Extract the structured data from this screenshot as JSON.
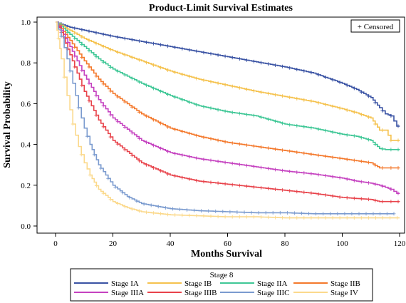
{
  "chart_data": {
    "type": "line",
    "title": "Product-Limit Survival Estimates",
    "xlabel": "Months Survival",
    "ylabel": "Survival Probability",
    "xlim": [
      0,
      120
    ],
    "ylim": [
      0,
      1.0
    ],
    "x_ticks": [
      "0",
      "20",
      "40",
      "60",
      "80",
      "100",
      "120"
    ],
    "y_ticks": [
      "0.0",
      "0.2",
      "0.4",
      "0.6",
      "0.8",
      "1.0"
    ],
    "x_tick_values": [
      0,
      20,
      40,
      60,
      80,
      100,
      120
    ],
    "y_tick_values": [
      0,
      0.2,
      0.4,
      0.6,
      0.8,
      1.0
    ],
    "censored_label": "+ Censored",
    "legend_title": "Stage 8",
    "legend_position": "bottom",
    "grid": false,
    "series": [
      {
        "name": "Stage IA",
        "color": "#3a53a4",
        "x": [
          0,
          2,
          5,
          10,
          15,
          20,
          30,
          40,
          50,
          60,
          70,
          80,
          90,
          100,
          105,
          110,
          113,
          115,
          117,
          119,
          120
        ],
        "y": [
          1.0,
          0.99,
          0.975,
          0.96,
          0.945,
          0.93,
          0.905,
          0.88,
          0.855,
          0.83,
          0.805,
          0.78,
          0.75,
          0.7,
          0.67,
          0.63,
          0.58,
          0.55,
          0.54,
          0.49,
          0.49
        ]
      },
      {
        "name": "Stage IB",
        "color": "#f5c24e",
        "x": [
          0,
          2,
          5,
          10,
          15,
          20,
          30,
          40,
          50,
          60,
          70,
          80,
          90,
          100,
          105,
          110,
          113,
          115,
          117,
          119,
          120
        ],
        "y": [
          1.0,
          0.985,
          0.96,
          0.92,
          0.89,
          0.86,
          0.81,
          0.76,
          0.72,
          0.69,
          0.66,
          0.635,
          0.61,
          0.575,
          0.555,
          0.53,
          0.47,
          0.47,
          0.42,
          0.42,
          0.42
        ]
      },
      {
        "name": "Stage IIA",
        "color": "#3fc796",
        "x": [
          0,
          2,
          5,
          10,
          15,
          20,
          30,
          40,
          50,
          60,
          70,
          80,
          90,
          100,
          105,
          110,
          113,
          115,
          117,
          119,
          120
        ],
        "y": [
          1.0,
          0.98,
          0.94,
          0.88,
          0.82,
          0.77,
          0.7,
          0.64,
          0.59,
          0.56,
          0.54,
          0.5,
          0.48,
          0.45,
          0.44,
          0.42,
          0.38,
          0.375,
          0.375,
          0.375,
          0.375
        ]
      },
      {
        "name": "Stage IIB",
        "color": "#f4792c",
        "x": [
          0,
          2,
          5,
          10,
          15,
          20,
          30,
          40,
          50,
          60,
          70,
          80,
          90,
          100,
          105,
          110,
          113,
          115,
          117,
          119,
          120
        ],
        "y": [
          1.0,
          0.97,
          0.91,
          0.81,
          0.72,
          0.65,
          0.55,
          0.48,
          0.44,
          0.41,
          0.39,
          0.37,
          0.35,
          0.33,
          0.32,
          0.31,
          0.285,
          0.285,
          0.285,
          0.285,
          0.285
        ]
      },
      {
        "name": "Stage IIIA",
        "color": "#c542c0",
        "x": [
          0,
          2,
          5,
          10,
          15,
          20,
          30,
          40,
          50,
          60,
          70,
          80,
          90,
          100,
          105,
          110,
          113,
          115,
          117,
          119,
          120
        ],
        "y": [
          1.0,
          0.96,
          0.88,
          0.74,
          0.62,
          0.53,
          0.42,
          0.36,
          0.33,
          0.31,
          0.29,
          0.27,
          0.255,
          0.235,
          0.22,
          0.21,
          0.2,
          0.19,
          0.18,
          0.16,
          0.16
        ]
      },
      {
        "name": "Stage IIIB",
        "color": "#e8434b",
        "x": [
          0,
          2,
          5,
          10,
          15,
          20,
          30,
          40,
          50,
          60,
          70,
          80,
          90,
          100,
          105,
          110,
          113,
          115,
          117,
          119,
          120
        ],
        "y": [
          1.0,
          0.95,
          0.84,
          0.66,
          0.52,
          0.42,
          0.31,
          0.25,
          0.22,
          0.205,
          0.19,
          0.175,
          0.16,
          0.14,
          0.135,
          0.13,
          0.12,
          0.12,
          0.12,
          0.12,
          0.12
        ]
      },
      {
        "name": "Stage IIIC",
        "color": "#7b9bcf",
        "x": [
          0,
          2,
          4,
          6,
          8,
          10,
          12,
          15,
          20,
          25,
          30,
          40,
          50,
          60,
          70,
          80,
          90,
          100,
          110,
          118
        ],
        "y": [
          1.0,
          0.93,
          0.82,
          0.7,
          0.58,
          0.48,
          0.4,
          0.3,
          0.2,
          0.145,
          0.11,
          0.085,
          0.075,
          0.07,
          0.065,
          0.065,
          0.06,
          0.06,
          0.06,
          0.06
        ]
      },
      {
        "name": "Stage IV",
        "color": "#fbd98c",
        "x": [
          0,
          1,
          2,
          4,
          6,
          8,
          10,
          12,
          15,
          20,
          25,
          30,
          40,
          50,
          60,
          70,
          80,
          90,
          100,
          110,
          120
        ],
        "y": [
          1.0,
          0.92,
          0.82,
          0.64,
          0.5,
          0.39,
          0.31,
          0.25,
          0.18,
          0.12,
          0.09,
          0.07,
          0.055,
          0.05,
          0.045,
          0.045,
          0.04,
          0.04,
          0.04,
          0.04,
          0.04
        ]
      }
    ]
  }
}
